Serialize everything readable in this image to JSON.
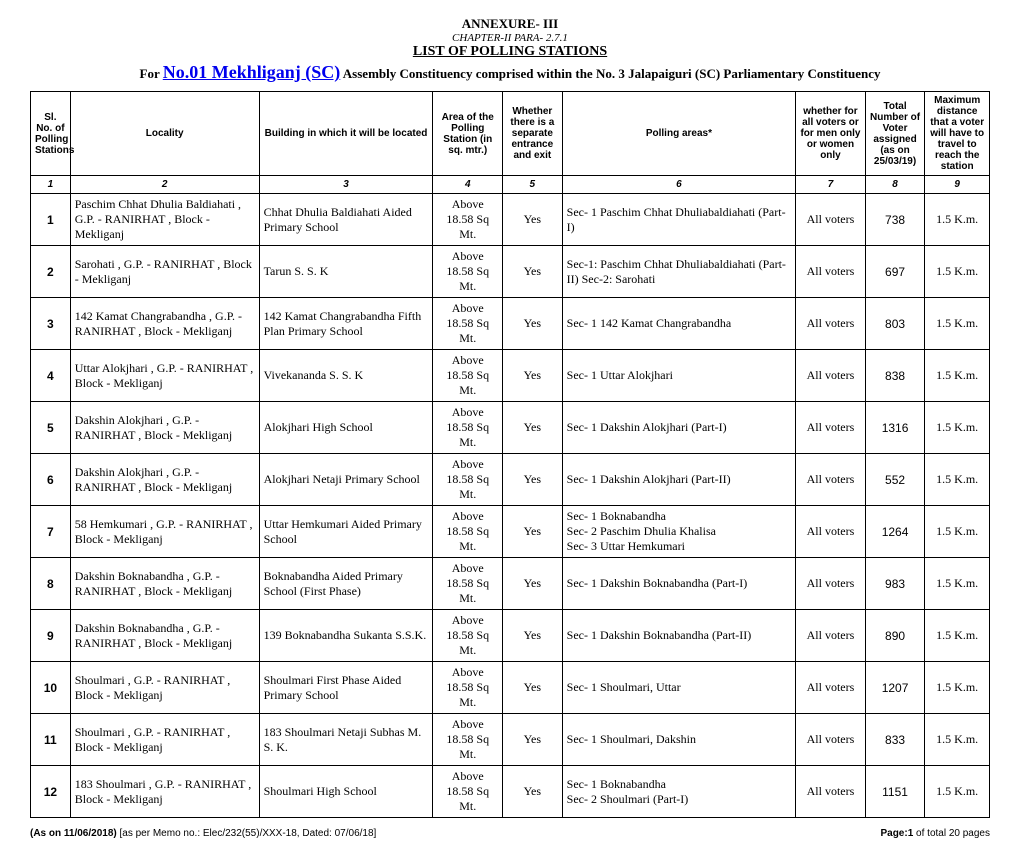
{
  "header": {
    "annexure": "ANNEXURE- III",
    "chapter": "CHAPTER-II PARA- 2.7.1",
    "listTitle": "LIST OF POLLING STATIONS",
    "forPrefix": "For ",
    "constituencyNo": "No.01 Mekhliganj (SC)",
    "forSuffix": " Assembly Constituency comprised within the No. 3 Jalapaiguri (SC) Parliamentary Constituency"
  },
  "columns": [
    "Sl. No. of Polling Stations",
    "Locality",
    "Building in which it will be located",
    "Area of the Polling Station (in sq. mtr.)",
    "Whether there is a separate entrance and exit",
    "Polling areas*",
    "whether for all voters or for men only or women only",
    "Total Number of Voter assigned (as on 25/03/19)",
    "Maximum distance that a voter will have to travel to reach the station"
  ],
  "columnNumbers": [
    "1",
    "2",
    "3",
    "4",
    "5",
    "6",
    "7",
    "8",
    "9"
  ],
  "rows": [
    {
      "sl": "1",
      "locality": "Paschim Chhat Dhulia Baldiahati , G.P. - RANIRHAT , Block - Mekliganj",
      "building": "Chhat Dhulia Baldiahati Aided Primary School",
      "area": "Above 18.58 Sq Mt.",
      "separate": "Yes",
      "polling": "Sec-   1   Paschim Chhat Dhuliabaldiahati (Part-I)",
      "whetherfor": "All voters",
      "voters": "738",
      "dist": "1.5 K.m."
    },
    {
      "sl": "2",
      "locality": "Sarohati , G.P. - RANIRHAT , Block - Mekliganj",
      "building": "Tarun S. S. K",
      "area": "Above 18.58 Sq Mt.",
      "separate": "Yes",
      "polling": "Sec-1: Paschim Chhat Dhuliabaldiahati (Part-II)     Sec-2: Sarohati",
      "whetherfor": "All voters",
      "voters": "697",
      "dist": "1.5 K.m."
    },
    {
      "sl": "3",
      "locality": "142 Kamat Changrabandha , G.P. - RANIRHAT , Block - Mekliganj",
      "building": "142 Kamat Changrabandha Fifth Plan Primary School",
      "area": "Above 18.58 Sq Mt.",
      "separate": "Yes",
      "polling": "Sec-   1   142 Kamat Changrabandha",
      "whetherfor": "All voters",
      "voters": "803",
      "dist": "1.5 K.m."
    },
    {
      "sl": "4",
      "locality": "Uttar Alokjhari , G.P. - RANIRHAT , Block - Mekliganj",
      "building": "Vivekananda S. S. K",
      "area": "Above 18.58 Sq Mt.",
      "separate": "Yes",
      "polling": "Sec-   1   Uttar Alokjhari",
      "whetherfor": "All voters",
      "voters": "838",
      "dist": "1.5 K.m."
    },
    {
      "sl": "5",
      "locality": "Dakshin Alokjhari , G.P. - RANIRHAT , Block - Mekliganj",
      "building": "Alokjhari High School",
      "area": "Above 18.58 Sq Mt.",
      "separate": "Yes",
      "polling": "Sec-   1   Dakshin Alokjhari (Part-I)",
      "whetherfor": "All voters",
      "voters": "1316",
      "dist": "1.5 K.m."
    },
    {
      "sl": "6",
      "locality": "Dakshin Alokjhari , G.P. - RANIRHAT , Block - Mekliganj",
      "building": "Alokjhari Netaji Primary School",
      "area": "Above 18.58 Sq Mt.",
      "separate": "Yes",
      "polling": "Sec-   1   Dakshin Alokjhari (Part-II)",
      "whetherfor": "All voters",
      "voters": "552",
      "dist": "1.5 K.m."
    },
    {
      "sl": "7",
      "locality": "58 Hemkumari , G.P. - RANIRHAT , Block - Mekliganj",
      "building": "Uttar Hemkumari Aided Primary School",
      "area": "Above 18.58 Sq Mt.",
      "separate": "Yes",
      "polling": "Sec-   1   Boknabandha\nSec-   2   Paschim Dhulia Khalisa\nSec-   3   Uttar Hemkumari",
      "whetherfor": "All voters",
      "voters": "1264",
      "dist": "1.5 K.m."
    },
    {
      "sl": "8",
      "locality": "Dakshin Boknabandha , G.P. - RANIRHAT , Block - Mekliganj",
      "building": "Boknabandha Aided Primary School (First Phase)",
      "area": "Above 18.58 Sq Mt.",
      "separate": "Yes",
      "polling": "Sec-   1   Dakshin Boknabandha (Part-I)",
      "whetherfor": "All voters",
      "voters": "983",
      "dist": "1.5 K.m."
    },
    {
      "sl": "9",
      "locality": "Dakshin Boknabandha , G.P. - RANIRHAT , Block - Mekliganj",
      "building": "139 Boknabandha Sukanta S.S.K.",
      "area": "Above 18.58 Sq Mt.",
      "separate": "Yes",
      "polling": "Sec-   1   Dakshin Boknabandha (Part-II)",
      "whetherfor": "All voters",
      "voters": "890",
      "dist": "1.5 K.m."
    },
    {
      "sl": "10",
      "locality": "Shoulmari , G.P. - RANIRHAT , Block - Mekliganj",
      "building": "Shoulmari First Phase Aided Primary School",
      "area": "Above 18.58 Sq Mt.",
      "separate": "Yes",
      "polling": "Sec-   1   Shoulmari, Uttar",
      "whetherfor": "All voters",
      "voters": "1207",
      "dist": "1.5 K.m."
    },
    {
      "sl": "11",
      "locality": "Shoulmari , G.P. - RANIRHAT , Block - Mekliganj",
      "building": "183 Shoulmari Netaji Subhas M. S. K.",
      "area": "Above 18.58 Sq Mt.",
      "separate": "Yes",
      "polling": "Sec-   1   Shoulmari, Dakshin",
      "whetherfor": "All voters",
      "voters": "833",
      "dist": "1.5 K.m."
    },
    {
      "sl": "12",
      "locality": "183 Shoulmari , G.P. - RANIRHAT , Block - Mekliganj",
      "building": "Shoulmari High School",
      "area": "Above 18.58 Sq Mt.",
      "separate": "Yes",
      "polling": "Sec-   1   Boknabandha\nSec-   2   Shoulmari (Part-I)",
      "whetherfor": "All voters",
      "voters": "1151",
      "dist": "1.5 K.m."
    }
  ],
  "footer": {
    "leftBold": "(As on 11/06/2018) ",
    "leftNormal": "[as per Memo no.: Elec/232(55)/XXX-18, Dated: 07/06/18]",
    "pageLabel": "Page:",
    "pageNo": "1",
    "pageTotal": " of total 20 pages"
  }
}
